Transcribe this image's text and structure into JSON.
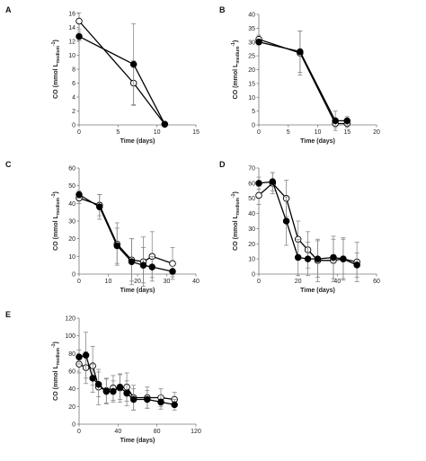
{
  "figure": {
    "background": "#ffffff",
    "line_color": "#000000",
    "error_bar_color": "#888888"
  },
  "chart_data": [
    {
      "type": "line",
      "panel": "A",
      "xlabel": "Time (days)",
      "ylabel_main": "CO (mmol L",
      "ylabel_sub": "medium",
      "ylabel_sup": "-1",
      "ylabel_close": ")",
      "xlim": [
        0,
        15
      ],
      "ylim": [
        0,
        16
      ],
      "xticks": [
        "0",
        "5",
        "10",
        "15"
      ],
      "xtick_values": [
        0,
        5,
        10,
        15
      ],
      "yticks": [
        "0",
        "2",
        "4",
        "6",
        "8",
        "10",
        "12",
        "14",
        "16"
      ],
      "ytick_values": [
        0,
        2,
        4,
        6,
        8,
        10,
        12,
        14,
        16
      ],
      "series": [
        {
          "marker": "open",
          "x": [
            0,
            7,
            11
          ],
          "y": [
            14.9,
            6.0,
            0.1
          ],
          "err": [
            1.2,
            3.2,
            0
          ]
        },
        {
          "marker": "filled",
          "x": [
            0,
            7,
            11
          ],
          "y": [
            12.7,
            8.7,
            0.1
          ],
          "err": [
            0.6,
            5.8,
            0
          ]
        }
      ]
    },
    {
      "type": "line",
      "panel": "B",
      "xlabel": "Time (days)",
      "ylabel_main": "CO (mmol L",
      "ylabel_sub": "medium",
      "ylabel_sup": "-1",
      "ylabel_close": ")",
      "xlim": [
        0,
        20
      ],
      "ylim": [
        0,
        40
      ],
      "xticks": [
        "0",
        "5",
        "10",
        "15",
        "20"
      ],
      "xtick_values": [
        0,
        5,
        10,
        15,
        20
      ],
      "yticks": [
        "0",
        "5",
        "10",
        "15",
        "20",
        "25",
        "30",
        "35",
        "40"
      ],
      "ytick_values": [
        0,
        5,
        10,
        15,
        20,
        25,
        30,
        35,
        40
      ],
      "series": [
        {
          "marker": "open",
          "x": [
            0,
            7,
            13,
            15
          ],
          "y": [
            31,
            26,
            0.5,
            0.5
          ],
          "err": [
            1.5,
            8,
            1.5,
            1.5
          ]
        },
        {
          "marker": "filled",
          "x": [
            0,
            7,
            13,
            15
          ],
          "y": [
            30,
            26.5,
            1.5,
            1.5
          ],
          "err": [
            1,
            7.5,
            3.5,
            1.5
          ]
        }
      ]
    },
    {
      "type": "line",
      "panel": "C",
      "xlabel": "Time (days)",
      "ylabel_main": "CO (mmol L",
      "ylabel_sub": "medium",
      "ylabel_sup": "-1",
      "ylabel_close": ")",
      "xlim": [
        0,
        40
      ],
      "ylim": [
        0,
        60
      ],
      "xticks": [
        "0",
        "10",
        "20",
        "30",
        "40"
      ],
      "xtick_values": [
        0,
        10,
        20,
        30,
        40
      ],
      "yticks": [
        "0",
        "10",
        "20",
        "30",
        "40",
        "50",
        "60"
      ],
      "ytick_values": [
        0,
        10,
        20,
        30,
        40,
        50,
        60
      ],
      "series": [
        {
          "marker": "open",
          "x": [
            0,
            7,
            13,
            18,
            22,
            25,
            32
          ],
          "y": [
            43,
            39,
            17,
            8,
            7,
            10,
            6
          ],
          "err": [
            3,
            6,
            12,
            12,
            14,
            14,
            9
          ]
        },
        {
          "marker": "filled",
          "x": [
            0,
            7,
            13,
            18,
            22,
            25,
            32
          ],
          "y": [
            45,
            38,
            16,
            7,
            5,
            4,
            1.5
          ],
          "err": [
            2,
            7,
            10,
            13,
            10,
            6,
            3
          ]
        }
      ]
    },
    {
      "type": "line",
      "panel": "D",
      "xlabel": "Time (days)",
      "ylabel_main": "CO (mmol L",
      "ylabel_sub": "medium",
      "ylabel_sup": "-1",
      "ylabel_close": ")",
      "xlim": [
        0,
        60
      ],
      "ylim": [
        0,
        70
      ],
      "xticks": [
        "0",
        "20",
        "40",
        "60"
      ],
      "xtick_values": [
        0,
        20,
        40,
        60
      ],
      "yticks": [
        "0",
        "10",
        "20",
        "30",
        "40",
        "50",
        "60",
        "70"
      ],
      "ytick_values": [
        0,
        10,
        20,
        30,
        40,
        50,
        60,
        70
      ],
      "series": [
        {
          "marker": "open",
          "x": [
            0,
            7,
            14,
            20,
            25,
            30,
            38,
            43,
            50
          ],
          "y": [
            52,
            60,
            50,
            23,
            16,
            9,
            9,
            10,
            8
          ],
          "err": [
            6,
            7,
            12,
            12,
            12,
            14,
            14,
            14,
            13
          ]
        },
        {
          "marker": "filled",
          "x": [
            0,
            7,
            14,
            20,
            25,
            30,
            38,
            43,
            50
          ],
          "y": [
            60,
            61,
            35,
            11,
            10,
            10,
            11,
            10,
            6
          ],
          "err": [
            4,
            6,
            16,
            12,
            11,
            12,
            14,
            13,
            8
          ]
        }
      ]
    },
    {
      "type": "line",
      "panel": "E",
      "xlabel": "Time (days)",
      "ylabel_main": "CO (mmol L",
      "ylabel_sub": "medium",
      "ylabel_sup": "-1",
      "ylabel_close": ")",
      "xlim": [
        0,
        120
      ],
      "ylim": [
        0,
        120
      ],
      "xticks": [
        "0",
        "40",
        "80",
        "120"
      ],
      "xtick_values": [
        0,
        40,
        80,
        120
      ],
      "yticks": [
        "0",
        "20",
        "40",
        "60",
        "80",
        "100",
        "120"
      ],
      "ytick_values": [
        0,
        20,
        40,
        60,
        80,
        100,
        120
      ],
      "series": [
        {
          "marker": "open",
          "x": [
            0,
            7,
            14,
            20,
            28,
            35,
            42,
            49,
            56,
            70,
            84,
            98
          ],
          "y": [
            68,
            64,
            66,
            42,
            38,
            41,
            41,
            42,
            30,
            30,
            30,
            28
          ],
          "err": [
            10,
            18,
            22,
            20,
            14,
            14,
            16,
            16,
            14,
            12,
            10,
            8
          ]
        },
        {
          "marker": "filled",
          "x": [
            0,
            7,
            14,
            20,
            28,
            35,
            42,
            49,
            56,
            70,
            84,
            98
          ],
          "y": [
            76,
            78,
            52,
            45,
            37,
            37,
            42,
            35,
            28,
            28,
            25,
            22
          ],
          "err": [
            8,
            26,
            16,
            14,
            14,
            12,
            14,
            14,
            12,
            10,
            8,
            6
          ]
        }
      ]
    }
  ]
}
